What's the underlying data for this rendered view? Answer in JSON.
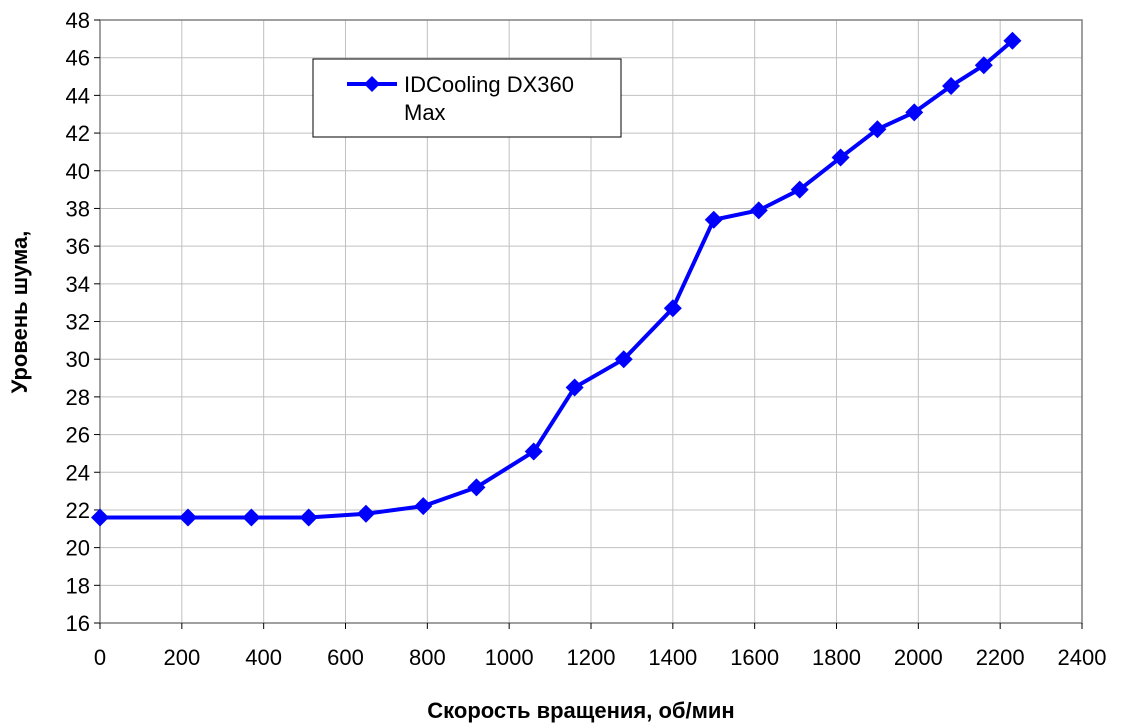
{
  "chart_data": {
    "type": "line",
    "xlabel": "Скорость вращения, об/мин",
    "ylabel": "Уровень шума,",
    "xlim": [
      0,
      2400
    ],
    "ylim": [
      16,
      48
    ],
    "xticks": [
      "0",
      "200",
      "400",
      "600",
      "800",
      "1000",
      "1200",
      "1400",
      "1600",
      "1800",
      "2000",
      "2200",
      "2400"
    ],
    "yticks": [
      "16",
      "18",
      "20",
      "22",
      "24",
      "26",
      "28",
      "30",
      "32",
      "34",
      "36",
      "38",
      "40",
      "42",
      "44",
      "46",
      "48"
    ],
    "grid": true,
    "legend_position": "top-center",
    "series": [
      {
        "name_line1": "IDCooling DX360",
        "name_line2": "Max",
        "color": "#0000ff",
        "marker": "diamond",
        "x": [
          0,
          215,
          370,
          510,
          650,
          790,
          920,
          1060,
          1160,
          1280,
          1400,
          1500,
          1610,
          1710,
          1810,
          1900,
          1990,
          2080,
          2160,
          2230
        ],
        "y": [
          21.6,
          21.6,
          21.6,
          21.6,
          21.8,
          22.2,
          23.2,
          25.1,
          28.5,
          30.0,
          32.7,
          37.4,
          37.9,
          39.0,
          40.7,
          42.2,
          43.1,
          44.5,
          45.6,
          46.9
        ]
      }
    ]
  }
}
